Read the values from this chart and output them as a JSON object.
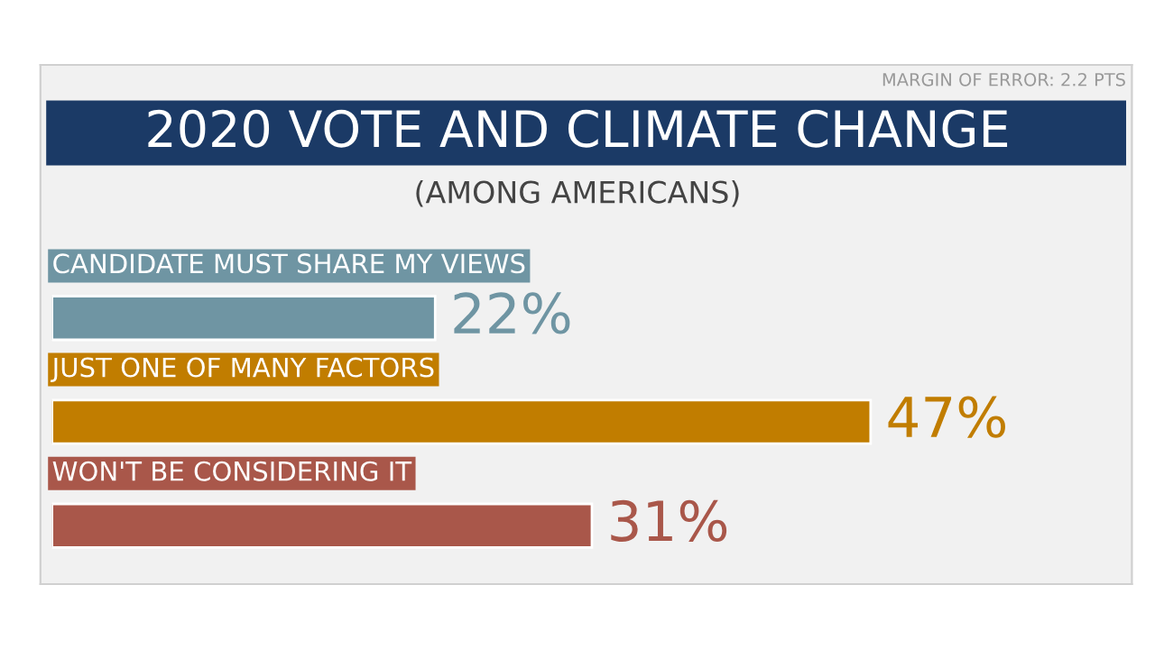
{
  "chart_data": {
    "type": "bar",
    "orientation": "horizontal",
    "title": "2020 VOTE AND CLIMATE CHANGE",
    "subtitle": "(AMONG AMERICANS)",
    "annotations": [
      "MARGIN OF ERROR: 2.2 PTS"
    ],
    "categories": [
      "CANDIDATE MUST SHARE MY VIEWS",
      "JUST ONE OF MANY FACTORS",
      "WON'T BE CONSIDERING IT"
    ],
    "values": [
      22,
      47,
      31
    ],
    "colors": [
      "#6f95a3",
      "#c17d00",
      "#a9574a"
    ],
    "value_labels": [
      "22%",
      "47%",
      "31%"
    ],
    "xlim": [
      0,
      62
    ]
  }
}
